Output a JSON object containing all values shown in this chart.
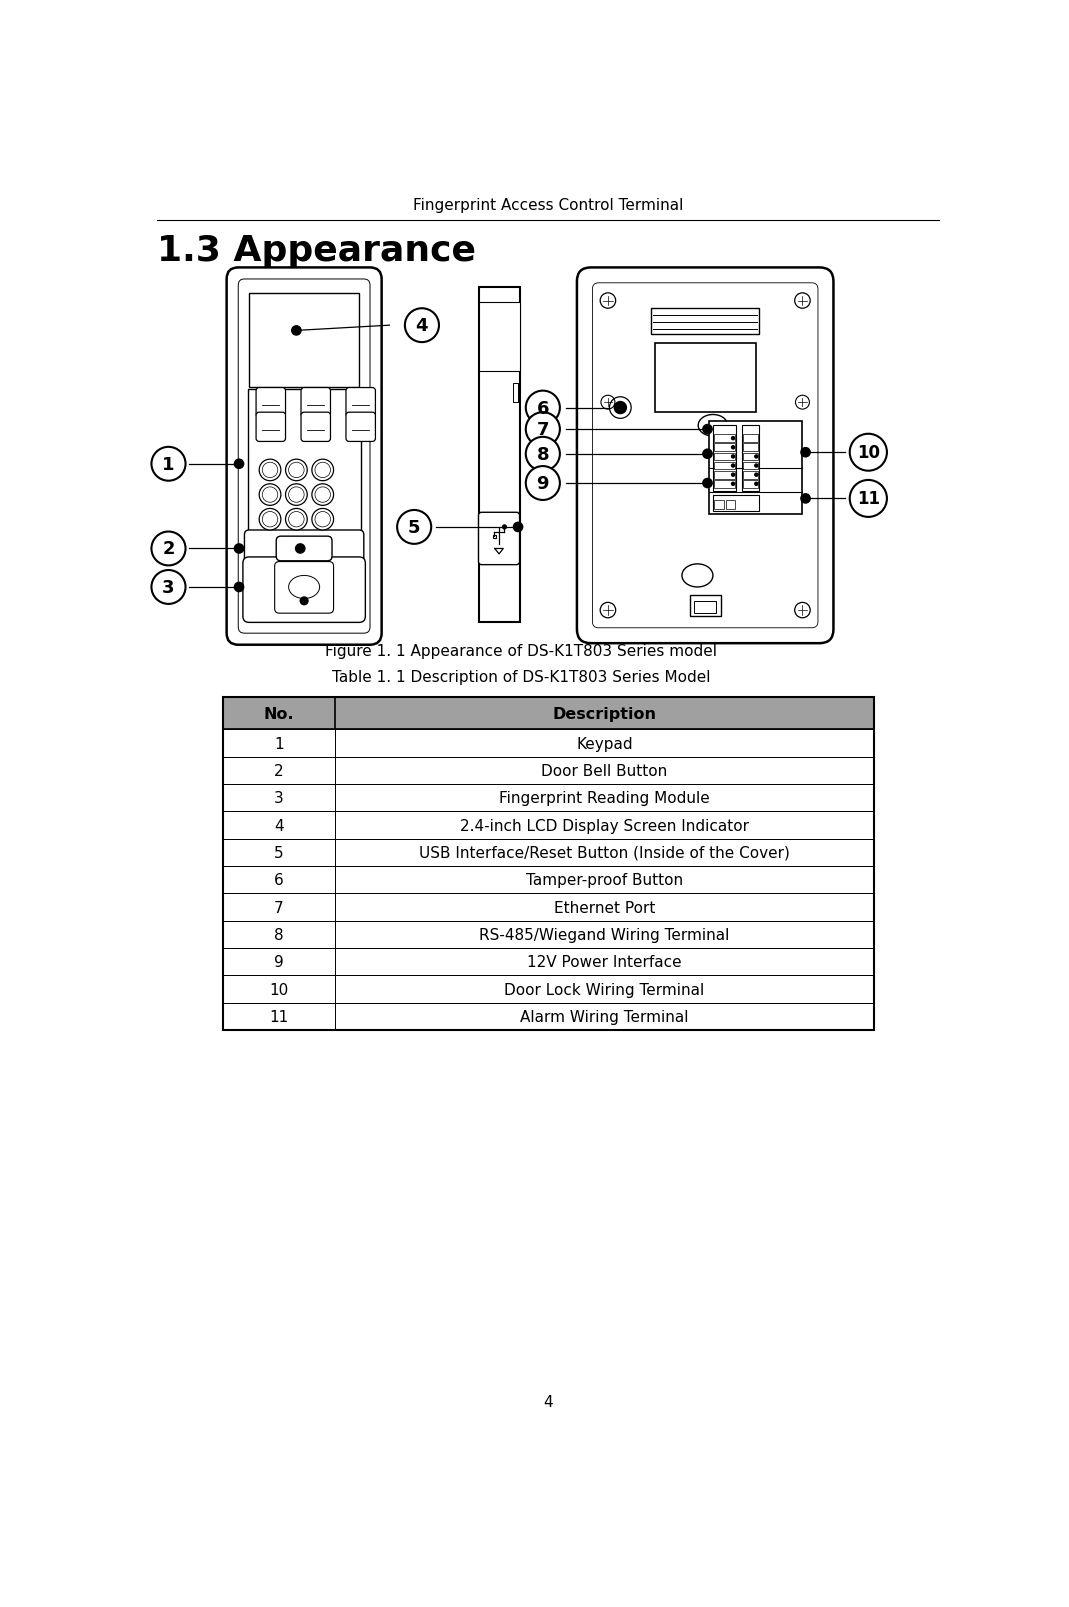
{
  "header_text": "Fingerprint Access Control Terminal",
  "section_title": "1.3 Appearance",
  "figure_caption": "Figure 1. 1 Appearance of DS-K1T803 Series model",
  "table_caption": "Table 1. 1 Description of DS-K1T803 Series Model",
  "table_header": [
    "No.",
    "Description"
  ],
  "table_rows": [
    [
      "1",
      "Keypad"
    ],
    [
      "2",
      "Door Bell Button"
    ],
    [
      "3",
      "Fingerprint Reading Module"
    ],
    [
      "4",
      "2.4-inch LCD Display Screen Indicator"
    ],
    [
      "5",
      "USB Interface/Reset Button (Inside of the Cover)"
    ],
    [
      "6",
      "Tamper-proof Button"
    ],
    [
      "7",
      "Ethernet Port"
    ],
    [
      "8",
      "RS-485/Wiegand Wiring Terminal"
    ],
    [
      "9",
      "12V Power Interface"
    ],
    [
      "10",
      "Door Lock Wiring Terminal"
    ],
    [
      "11",
      "Alarm Wiring Terminal"
    ]
  ],
  "table_header_bg": "#a0a0a0",
  "table_row_bg": "#ffffff",
  "table_border": "#000000",
  "page_number": "4",
  "bg_color": "#ffffff"
}
